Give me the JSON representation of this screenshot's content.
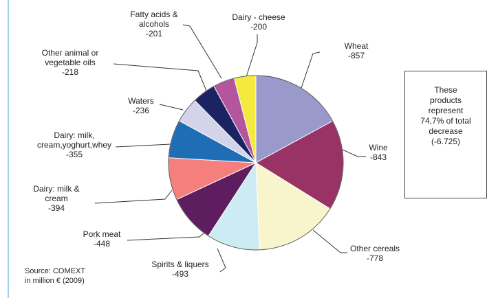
{
  "chart_data": {
    "type": "pie",
    "categories": [
      "Wheat",
      "Wine",
      "Other cereals",
      "Spirits & liquers",
      "Pork meat",
      "Dairy: milk &\ncream",
      "Dairy: milk,\ncream,yoghurt,whey",
      "Waters",
      "Other animal or\nvegetable oils",
      "Fatty acids &\nalcohols",
      "Dairy - cheese"
    ],
    "values": [
      -857,
      -843,
      -778,
      -493,
      -448,
      -394,
      -355,
      -236,
      -218,
      -201,
      -200
    ],
    "colors": [
      "#9999cc",
      "#993366",
      "#f8f5cc",
      "#cdebf2",
      "#5e1d5e",
      "#f47f7c",
      "#1f6db5",
      "#d3d3ea",
      "#1c2363",
      "#b5559e",
      "#f4e93d"
    ],
    "source": "Source: COMEXT\nin million € (2009)",
    "annotation": "These\nproducts\nrepresent\n74,7% of total\ndecrease\n(-6.725)"
  }
}
